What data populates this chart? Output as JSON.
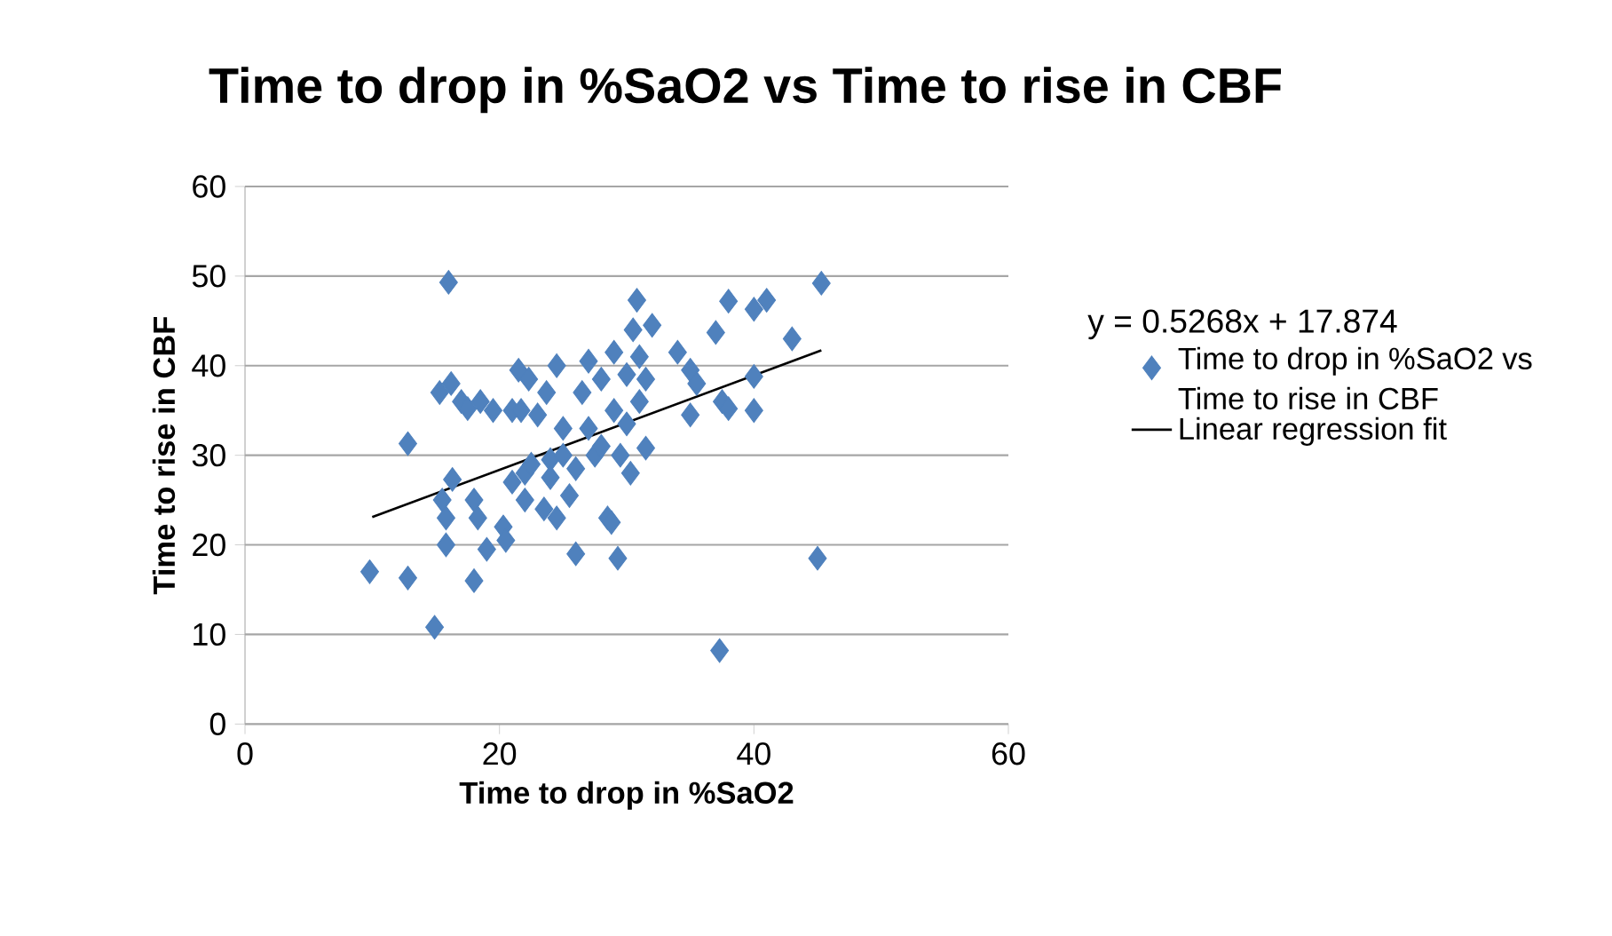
{
  "chart_data": {
    "type": "scatter",
    "title": "Time to drop in %SaO2 vs Time to rise in CBF",
    "xlabel": "Time to drop in %SaO2",
    "ylabel": "Time to rise in CBF",
    "series": [
      {
        "name": "Time to drop in %SaO2 vs Time to rise in CBF",
        "marker": "diamond",
        "color": "#4f81bd",
        "x": [
          9.8,
          12.8,
          12.8,
          14.9,
          15.3,
          16.0,
          15.5,
          15.8,
          15.8,
          16.3,
          16.2,
          17,
          17.5,
          18,
          18,
          18.3,
          18.5,
          19,
          19.5,
          20.3,
          20.5,
          21,
          21,
          21.5,
          21.7,
          22,
          22,
          22.3,
          22.5,
          23,
          23.5,
          23.7,
          24,
          24,
          24.5,
          24.5,
          25,
          25,
          25.5,
          26,
          26,
          26.5,
          27,
          27,
          27.5,
          28,
          28,
          28.5,
          28.8,
          29,
          29,
          29.3,
          29.5,
          30,
          30,
          30.3,
          30.5,
          30.8,
          31,
          31,
          31.5,
          31.5,
          32,
          34,
          35,
          35,
          35.5,
          37,
          37.3,
          37.5,
          38,
          38,
          40,
          40,
          40,
          41,
          43,
          45,
          45.3
        ],
        "values": [
          17,
          16.3,
          31.3,
          10.8,
          37,
          49.3,
          25,
          23,
          20,
          27.3,
          38,
          36,
          35.2,
          25,
          16,
          23,
          36,
          19.5,
          35,
          22,
          20.5,
          35,
          27,
          39.5,
          35,
          28,
          25,
          38.5,
          29,
          34.5,
          24,
          37,
          29.5,
          27.5,
          23,
          40,
          33,
          30,
          25.5,
          19,
          28.5,
          37,
          40.5,
          33,
          30,
          31,
          38.5,
          23,
          22.5,
          41.5,
          35,
          18.5,
          30,
          33.5,
          39,
          28,
          44,
          47.3,
          41,
          36,
          38.5,
          30.8,
          44.5,
          41.5,
          34.5,
          39.5,
          38,
          43.7,
          8.2,
          36,
          47.2,
          35.2,
          46.3,
          38.8,
          35,
          47.3,
          43,
          18.5,
          49.2
        ]
      },
      {
        "name": "Linear regression fit",
        "type": "line",
        "marker": "none",
        "color": "#000000",
        "x": [
          10,
          45.3
        ],
        "values": [
          23.1,
          41.7
        ]
      }
    ],
    "xlim": [
      0,
      60
    ],
    "ylim": [
      0,
      60
    ],
    "xticks": [
      0,
      20,
      40,
      60
    ],
    "yticks": [
      0,
      10,
      20,
      30,
      40,
      50,
      60
    ],
    "grid": "y",
    "legend": "right",
    "annotations": [
      "y = 0.5268x + 17.874"
    ]
  }
}
